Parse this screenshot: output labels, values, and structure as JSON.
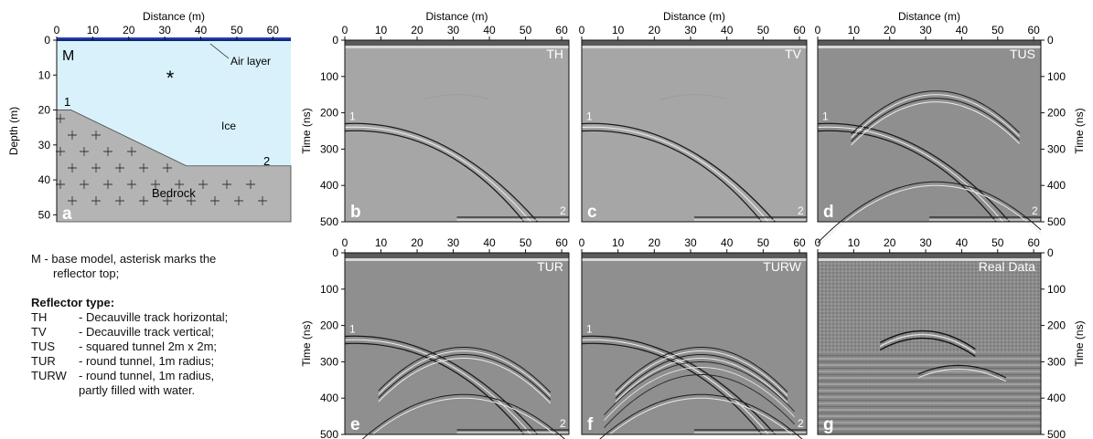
{
  "axes": {
    "distance_label": "Distance (m)",
    "depth_label": "Depth (m)",
    "time_label": "Time (ns)",
    "distance_ticks": [
      "0",
      "10",
      "20",
      "30",
      "40",
      "50",
      "60"
    ],
    "depth_ticks": [
      "0",
      "10",
      "20",
      "30",
      "40",
      "50"
    ],
    "time_ticks": [
      "0",
      "100",
      "200",
      "300",
      "400",
      "500"
    ]
  },
  "model_panel": {
    "letter": "a",
    "model_tag": "M",
    "asterisk": "*",
    "air_layer_label": "Air layer",
    "ice_label": "Ice",
    "bedrock_label": "Bedrock",
    "point1_label": "1",
    "point2_label": "2",
    "colors": {
      "ice": "#d8f1fb",
      "bedrock": "#b4b4b4",
      "air": "#1f3fbf"
    }
  },
  "radargram_panels": [
    {
      "letter": "b",
      "tag": "TH"
    },
    {
      "letter": "c",
      "tag": "TV"
    },
    {
      "letter": "d",
      "tag": "TUS"
    },
    {
      "letter": "e",
      "tag": "TUR"
    },
    {
      "letter": "f",
      "tag": "TURW"
    },
    {
      "letter": "g",
      "tag": "Real Data"
    }
  ],
  "reflector_markers": {
    "one": "1",
    "two": "2"
  },
  "legend": {
    "m_line1": "M - base model, asterisk marks the",
    "m_line2": "reflector top;",
    "title": "Reflector type:",
    "items": [
      {
        "code": "TH",
        "desc": "- Decauville track horizontal;"
      },
      {
        "code": "TV",
        "desc": "- Decauville track vertical;"
      },
      {
        "code": "TUS",
        "desc": "- squared tunnel 2m x 2m;"
      },
      {
        "code": "TUR",
        "desc": "- round tunnel, 1m radius;"
      },
      {
        "code": "TURW",
        "desc": "- round tunnel, 1m radius,"
      }
    ],
    "turw_cont": "partly filled with water."
  }
}
